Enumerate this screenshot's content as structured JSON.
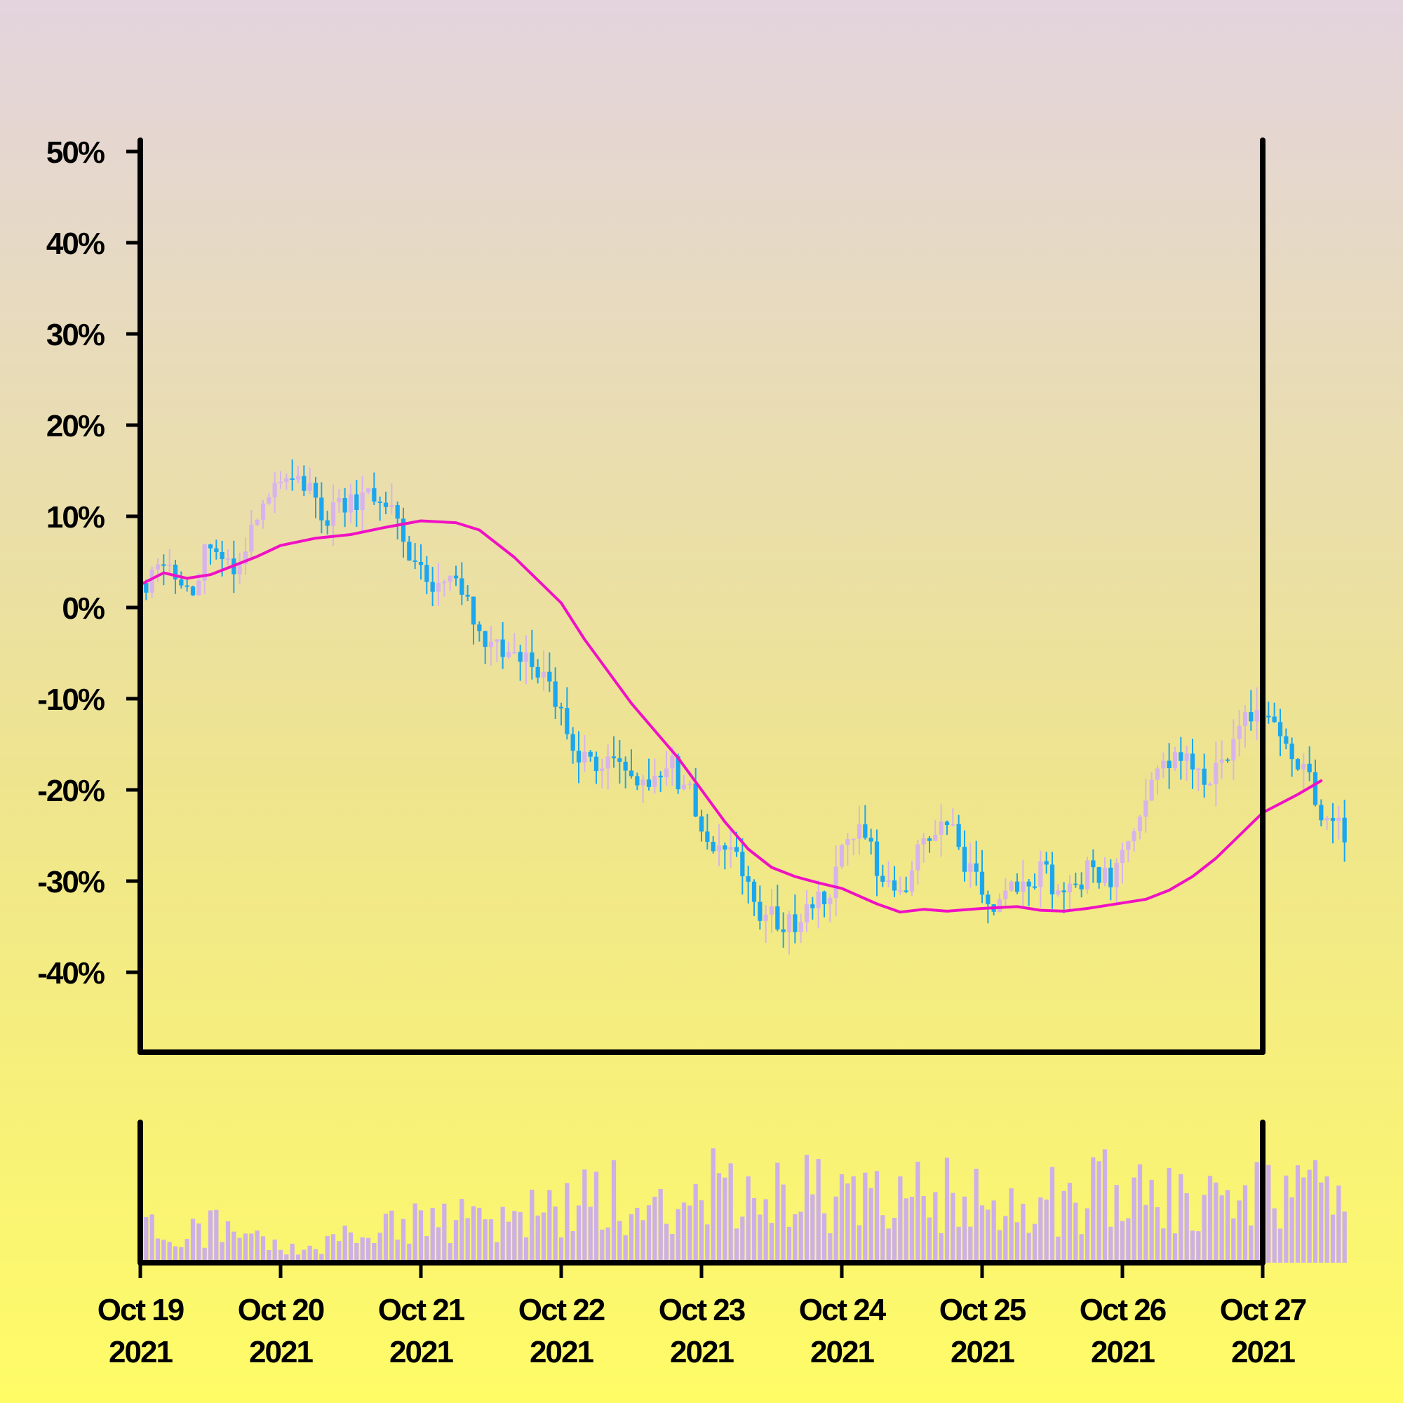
{
  "chart_data": {
    "type": "candlestick",
    "y_unit": "%",
    "ylim": [
      -50,
      50
    ],
    "y_ticks": [
      {
        "value": 50,
        "label": "50%"
      },
      {
        "value": 40,
        "label": "40%"
      },
      {
        "value": 30,
        "label": "30%"
      },
      {
        "value": 20,
        "label": "20%"
      },
      {
        "value": 10,
        "label": "10%"
      },
      {
        "value": 0,
        "label": "0%"
      },
      {
        "value": -10,
        "label": "-10%"
      },
      {
        "value": -20,
        "label": "-20%"
      },
      {
        "value": -30,
        "label": "-30%"
      },
      {
        "value": -40,
        "label": "-40%"
      }
    ],
    "x_ticks": [
      {
        "date": "2021-10-19",
        "line1": "Oct 19",
        "line2": "2021"
      },
      {
        "date": "2021-10-20",
        "line1": "Oct 20",
        "line2": "2021"
      },
      {
        "date": "2021-10-21",
        "line1": "Oct 21",
        "line2": "2021"
      },
      {
        "date": "2021-10-22",
        "line1": "Oct 22",
        "line2": "2021"
      },
      {
        "date": "2021-10-23",
        "line1": "Oct 23",
        "line2": "2021"
      },
      {
        "date": "2021-10-24",
        "line1": "Oct 24",
        "line2": "2021"
      },
      {
        "date": "2021-10-25",
        "line1": "Oct 25",
        "line2": "2021"
      },
      {
        "date": "2021-10-26",
        "line1": "Oct 26",
        "line2": "2021"
      },
      {
        "date": "2021-10-27",
        "line1": "Oct 27",
        "line2": "2021"
      }
    ],
    "x_range": [
      "2021-10-19",
      "2021-10-27"
    ],
    "close_path": [
      [
        "2021-10-19T00:00",
        2
      ],
      [
        "2021-10-19T04:00",
        6
      ],
      [
        "2021-10-19T08:00",
        1
      ],
      [
        "2021-10-19T12:00",
        7
      ],
      [
        "2021-10-19T16:00",
        3
      ],
      [
        "2021-10-19T20:00",
        11
      ],
      [
        "2021-10-20T00:00",
        14
      ],
      [
        "2021-10-20T04:00",
        13
      ],
      [
        "2021-10-20T08:00",
        10
      ],
      [
        "2021-10-20T14:00",
        12
      ],
      [
        "2021-10-20T18:00",
        12
      ],
      [
        "2021-10-20T22:00",
        6
      ],
      [
        "2021-10-21T02:00",
        3
      ],
      [
        "2021-10-21T06:00",
        4
      ],
      [
        "2021-10-21T10:00",
        -4
      ],
      [
        "2021-10-21T14:00",
        -5
      ],
      [
        "2021-10-21T18:00",
        -5
      ],
      [
        "2021-10-21T22:00",
        -8
      ],
      [
        "2021-10-22T02:00",
        -15
      ],
      [
        "2021-10-22T06:00",
        -18
      ],
      [
        "2021-10-22T10:00",
        -16
      ],
      [
        "2021-10-22T14:00",
        -20
      ],
      [
        "2021-10-22T18:00",
        -17
      ],
      [
        "2021-10-22T22:00",
        -20
      ],
      [
        "2021-10-23T02:00",
        -27
      ],
      [
        "2021-10-23T06:00",
        -28
      ],
      [
        "2021-10-23T10:00",
        -33
      ],
      [
        "2021-10-23T14:00",
        -35
      ],
      [
        "2021-10-23T18:00",
        -34
      ],
      [
        "2021-10-23T22:00",
        -31
      ],
      [
        "2021-10-24T02:00",
        -24
      ],
      [
        "2021-10-24T06:00",
        -28
      ],
      [
        "2021-10-24T10:00",
        -31
      ],
      [
        "2021-10-24T14:00",
        -26
      ],
      [
        "2021-10-24T18:00",
        -24
      ],
      [
        "2021-10-24T22:00",
        -29
      ],
      [
        "2021-10-25T02:00",
        -34
      ],
      [
        "2021-10-25T06:00",
        -30
      ],
      [
        "2021-10-25T10:00",
        -29
      ],
      [
        "2021-10-25T14:00",
        -31
      ],
      [
        "2021-10-25T18:00",
        -29
      ],
      [
        "2021-10-25T22:00",
        -30
      ],
      [
        "2021-10-26T02:00",
        -24
      ],
      [
        "2021-10-26T06:00",
        -19
      ],
      [
        "2021-10-26T10:00",
        -16
      ],
      [
        "2021-10-26T14:00",
        -20
      ],
      [
        "2021-10-26T18:00",
        -16
      ],
      [
        "2021-10-26T22:00",
        -11
      ],
      [
        "2021-10-27T02:00",
        -13
      ],
      [
        "2021-10-27T06:00",
        -17
      ],
      [
        "2021-10-27T10:00",
        -22
      ],
      [
        "2021-10-27T14:00",
        -25
      ]
    ],
    "moving_average": [
      [
        "2021-10-19T00:00",
        2.5
      ],
      [
        "2021-10-19T04:00",
        3.8
      ],
      [
        "2021-10-19T08:00",
        3.2
      ],
      [
        "2021-10-19T12:00",
        3.6
      ],
      [
        "2021-10-19T16:00",
        4.6
      ],
      [
        "2021-10-19T20:00",
        5.6
      ],
      [
        "2021-10-20T00:00",
        6.8
      ],
      [
        "2021-10-20T06:00",
        7.6
      ],
      [
        "2021-10-20T12:00",
        8.0
      ],
      [
        "2021-10-20T18:00",
        8.8
      ],
      [
        "2021-10-21T00:00",
        9.5
      ],
      [
        "2021-10-21T06:00",
        9.3
      ],
      [
        "2021-10-21T10:00",
        8.5
      ],
      [
        "2021-10-21T16:00",
        5.5
      ],
      [
        "2021-10-21T20:00",
        3.0
      ],
      [
        "2021-10-22T00:00",
        0.5
      ],
      [
        "2021-10-22T04:00",
        -3.5
      ],
      [
        "2021-10-22T08:00",
        -7.0
      ],
      [
        "2021-10-22T12:00",
        -10.5
      ],
      [
        "2021-10-22T16:00",
        -13.5
      ],
      [
        "2021-10-22T20:00",
        -16.5
      ],
      [
        "2021-10-23T00:00",
        -20.0
      ],
      [
        "2021-10-23T04:00",
        -23.5
      ],
      [
        "2021-10-23T08:00",
        -26.5
      ],
      [
        "2021-10-23T12:00",
        -28.5
      ],
      [
        "2021-10-23T16:00",
        -29.5
      ],
      [
        "2021-10-23T20:00",
        -30.2
      ],
      [
        "2021-10-24T00:00",
        -30.8
      ],
      [
        "2021-10-24T06:00",
        -32.5
      ],
      [
        "2021-10-24T10:00",
        -33.4
      ],
      [
        "2021-10-24T14:00",
        -33.1
      ],
      [
        "2021-10-24T18:00",
        -33.3
      ],
      [
        "2021-10-25T00:00",
        -33.0
      ],
      [
        "2021-10-25T06:00",
        -32.8
      ],
      [
        "2021-10-25T10:00",
        -33.2
      ],
      [
        "2021-10-25T14:00",
        -33.3
      ],
      [
        "2021-10-25T18:00",
        -33.0
      ],
      [
        "2021-10-25T22:00",
        -32.6
      ],
      [
        "2021-10-26T04:00",
        -32.0
      ],
      [
        "2021-10-26T08:00",
        -31.0
      ],
      [
        "2021-10-26T12:00",
        -29.5
      ],
      [
        "2021-10-26T16:00",
        -27.5
      ],
      [
        "2021-10-26T20:00",
        -25.0
      ],
      [
        "2021-10-27T00:00",
        -22.5
      ],
      [
        "2021-10-27T06:00",
        -20.5
      ],
      [
        "2021-10-27T10:00",
        -19.0
      ]
    ],
    "volume_path": [
      [
        "2021-10-19T00:00",
        0.25
      ],
      [
        "2021-10-19T12:00",
        0.3
      ],
      [
        "2021-10-19T20:00",
        0.18
      ],
      [
        "2021-10-20T04:00",
        0.1
      ],
      [
        "2021-10-20T12:00",
        0.3
      ],
      [
        "2021-10-20T20:00",
        0.32
      ],
      [
        "2021-10-21T04:00",
        0.38
      ],
      [
        "2021-10-21T12:00",
        0.28
      ],
      [
        "2021-10-21T20:00",
        0.4
      ],
      [
        "2021-10-22T04:00",
        0.5
      ],
      [
        "2021-10-22T12:00",
        0.55
      ],
      [
        "2021-10-22T20:00",
        0.55
      ],
      [
        "2021-10-23T04:00",
        0.62
      ],
      [
        "2021-10-23T12:00",
        0.58
      ],
      [
        "2021-10-23T20:00",
        0.55
      ],
      [
        "2021-10-24T04:00",
        0.58
      ],
      [
        "2021-10-24T12:00",
        0.55
      ],
      [
        "2021-10-24T20:00",
        0.62
      ],
      [
        "2021-10-25T04:00",
        0.5
      ],
      [
        "2021-10-25T12:00",
        0.52
      ],
      [
        "2021-10-25T20:00",
        0.6
      ],
      [
        "2021-10-26T04:00",
        0.5
      ],
      [
        "2021-10-26T12:00",
        0.48
      ],
      [
        "2021-10-26T20:00",
        0.45
      ],
      [
        "2021-10-27T00:00",
        0.55
      ]
    ],
    "candle_interval_minutes": 60,
    "colors": {
      "up_candle": "#d8b4ec",
      "down_candle": "#1aa7f0",
      "moving_average": "#f011c4",
      "volume": "#cdb0e8",
      "axes": "#000000",
      "background_top": "#e3d4de",
      "background_bottom": "#fffc66"
    },
    "grid": false,
    "legend": "none"
  }
}
